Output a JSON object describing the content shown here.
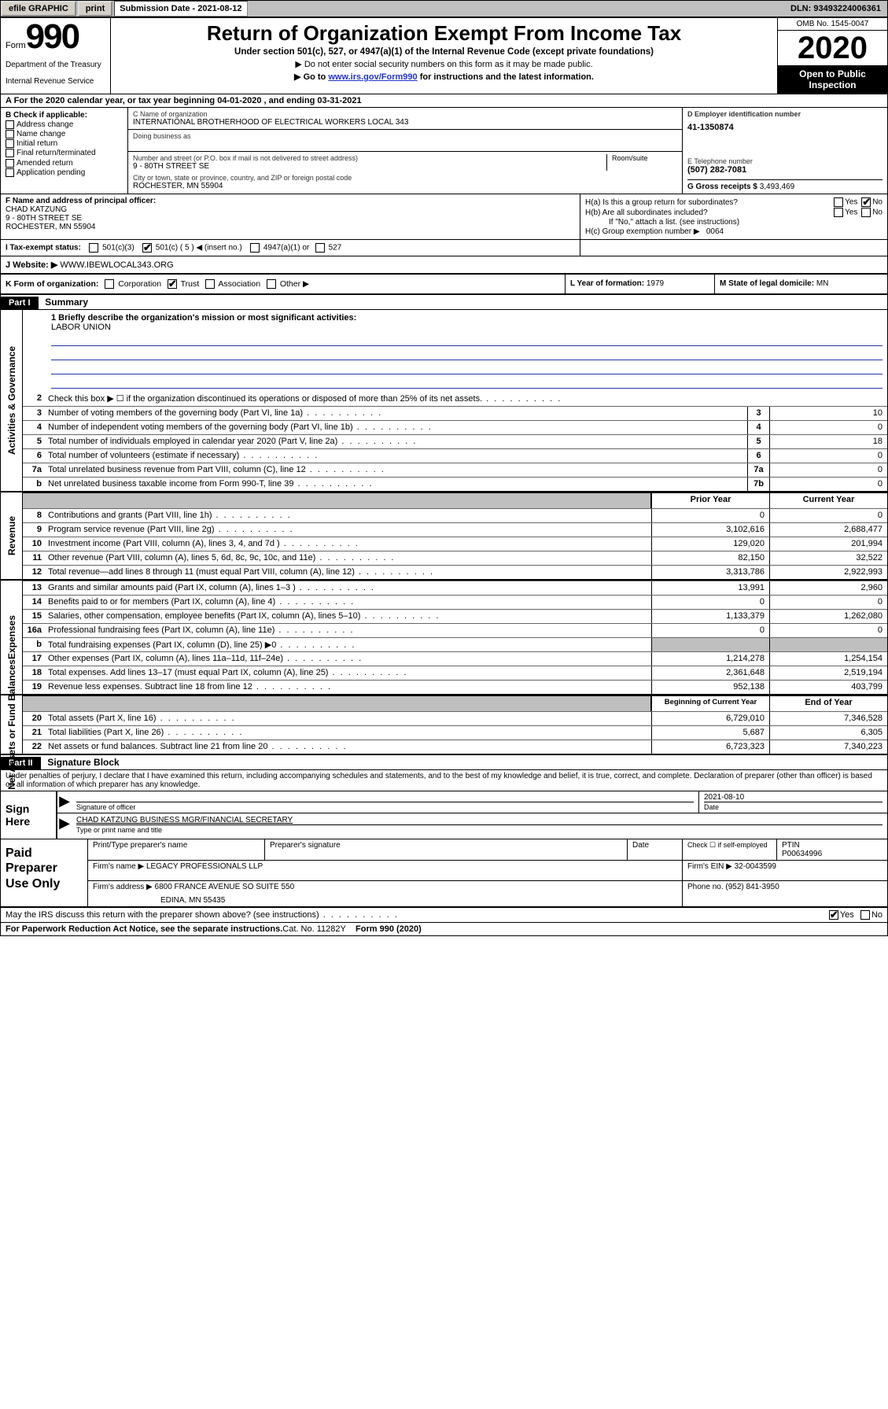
{
  "topbar": {
    "efile": "efile GRAPHIC",
    "print": "print",
    "sub_date_label": "Submission Date - 2021-08-12",
    "dln": "DLN: 93493224006361"
  },
  "form": {
    "form_word": "Form",
    "number": "990",
    "dept1": "Department of the Treasury",
    "dept2": "Internal Revenue Service"
  },
  "title": {
    "main": "Return of Organization Exempt From Income Tax",
    "sub": "Under section 501(c), 527, or 4947(a)(1) of the Internal Revenue Code (except private foundations)",
    "note1": "▶ Do not enter social security numbers on this form as it may be made public.",
    "note2_pre": "▶ Go to ",
    "note2_link": "www.irs.gov/Form990",
    "note2_post": " for instructions and the latest information."
  },
  "yearbox": {
    "omb": "OMB No. 1545-0047",
    "year": "2020",
    "open1": "Open to Public",
    "open2": "Inspection"
  },
  "row_a": "A For the 2020 calendar year, or tax year beginning 04-01-2020    , and ending 03-31-2021",
  "section_b": {
    "header": "B Check if applicable:",
    "items": [
      "Address change",
      "Name change",
      "Initial return",
      "Final return/terminated",
      "Amended return",
      "Application pending"
    ]
  },
  "section_c": {
    "name_label": "C Name of organization",
    "name": "INTERNATIONAL BROTHERHOOD OF ELECTRICAL WORKERS LOCAL 343",
    "dba_label": "Doing business as",
    "addr_label": "Number and street (or P.O. box if mail is not delivered to street address)",
    "addr": "9 - 80TH STREET SE",
    "room_label": "Room/suite",
    "city_label": "City or town, state or province, country, and ZIP or foreign postal code",
    "city": "ROCHESTER, MN  55904"
  },
  "section_d": {
    "ein_label": "D Employer identification number",
    "ein": "41-1350874",
    "tel_label": "E Telephone number",
    "tel": "(507) 282-7081",
    "gross_label": "G Gross receipts $ ",
    "gross": "3,493,469"
  },
  "section_f": {
    "label": "F  Name and address of principal officer:",
    "name": "CHAD KATZUNG",
    "addr1": "9 - 80TH STREET SE",
    "addr2": "ROCHESTER, MN  55904"
  },
  "section_h": {
    "ha": "H(a)  Is this a group return for subordinates?",
    "hb": "H(b)  Are all subordinates included?",
    "hb_note": "If \"No,\" attach a list. (see instructions)",
    "hc": "H(c)  Group exemption number ▶",
    "hc_val": "0064"
  },
  "row_i": {
    "label": "I   Tax-exempt status:",
    "opt1": "501(c)(3)",
    "opt2": "501(c) ( 5 ) ◀ (insert no.)",
    "opt3": "4947(a)(1) or",
    "opt4": "527"
  },
  "row_j_label": "J   Website: ▶ ",
  "row_j_val": "WWW.IBEWLOCAL343.ORG",
  "row_k": {
    "label": "K Form of organization:",
    "opts": [
      "Corporation",
      "Trust",
      "Association",
      "Other ▶"
    ],
    "l_label": "L Year of formation: ",
    "l_val": "1979",
    "m_label": "M State of legal domicile: ",
    "m_val": "MN"
  },
  "part1": {
    "tag": "Part I",
    "title": "Summary",
    "mission_label": "1   Briefly describe the organization's mission or most significant activities:",
    "mission": "LABOR UNION"
  },
  "governance_lines": [
    {
      "n": "2",
      "t": "Check this box ▶ ☐  if the organization discontinued its operations or disposed of more than 25% of its net assets."
    },
    {
      "n": "3",
      "t": "Number of voting members of the governing body (Part VI, line 1a)",
      "box": "3",
      "v": "10"
    },
    {
      "n": "4",
      "t": "Number of independent voting members of the governing body (Part VI, line 1b)",
      "box": "4",
      "v": "0"
    },
    {
      "n": "5",
      "t": "Total number of individuals employed in calendar year 2020 (Part V, line 2a)",
      "box": "5",
      "v": "18"
    },
    {
      "n": "6",
      "t": "Total number of volunteers (estimate if necessary)",
      "box": "6",
      "v": "0"
    },
    {
      "n": "7a",
      "t": "Total unrelated business revenue from Part VIII, column (C), line 12",
      "box": "7a",
      "v": "0"
    },
    {
      "n": "b",
      "t": "Net unrelated business taxable income from Form 990-T, line 39",
      "box": "7b",
      "v": "0"
    }
  ],
  "hdr_prior": "Prior Year",
  "hdr_current": "Current Year",
  "revenue_lines": [
    {
      "n": "8",
      "t": "Contributions and grants (Part VIII, line 1h)",
      "p": "0",
      "c": "0"
    },
    {
      "n": "9",
      "t": "Program service revenue (Part VIII, line 2g)",
      "p": "3,102,616",
      "c": "2,688,477"
    },
    {
      "n": "10",
      "t": "Investment income (Part VIII, column (A), lines 3, 4, and 7d )",
      "p": "129,020",
      "c": "201,994"
    },
    {
      "n": "11",
      "t": "Other revenue (Part VIII, column (A), lines 5, 6d, 8c, 9c, 10c, and 11e)",
      "p": "82,150",
      "c": "32,522"
    },
    {
      "n": "12",
      "t": "Total revenue—add lines 8 through 11 (must equal Part VIII, column (A), line 12)",
      "p": "3,313,786",
      "c": "2,922,993"
    }
  ],
  "expense_lines": [
    {
      "n": "13",
      "t": "Grants and similar amounts paid (Part IX, column (A), lines 1–3 )",
      "p": "13,991",
      "c": "2,960"
    },
    {
      "n": "14",
      "t": "Benefits paid to or for members (Part IX, column (A), line 4)",
      "p": "0",
      "c": "0"
    },
    {
      "n": "15",
      "t": "Salaries, other compensation, employee benefits (Part IX, column (A), lines 5–10)",
      "p": "1,133,379",
      "c": "1,262,080"
    },
    {
      "n": "16a",
      "t": "Professional fundraising fees (Part IX, column (A), line 11e)",
      "p": "0",
      "c": "0"
    },
    {
      "n": "b",
      "t": "Total fundraising expenses (Part IX, column (D), line 25) ▶0",
      "p": "",
      "c": "",
      "shade": true
    },
    {
      "n": "17",
      "t": "Other expenses (Part IX, column (A), lines 11a–11d, 11f–24e)",
      "p": "1,214,278",
      "c": "1,254,154"
    },
    {
      "n": "18",
      "t": "Total expenses. Add lines 13–17 (must equal Part IX, column (A), line 25)",
      "p": "2,361,648",
      "c": "2,519,194"
    },
    {
      "n": "19",
      "t": "Revenue less expenses. Subtract line 18 from line 12",
      "p": "952,138",
      "c": "403,799"
    }
  ],
  "hdr_begin": "Beginning of Current Year",
  "hdr_end": "End of Year",
  "netasset_lines": [
    {
      "n": "20",
      "t": "Total assets (Part X, line 16)",
      "p": "6,729,010",
      "c": "7,346,528"
    },
    {
      "n": "21",
      "t": "Total liabilities (Part X, line 26)",
      "p": "5,687",
      "c": "6,305"
    },
    {
      "n": "22",
      "t": "Net assets or fund balances. Subtract line 21 from line 20",
      "p": "6,723,323",
      "c": "7,340,223"
    }
  ],
  "part2": {
    "tag": "Part II",
    "title": "Signature Block",
    "declaration": "Under penalties of perjury, I declare that I have examined this return, including accompanying schedules and statements, and to the best of my knowledge and belief, it is true, correct, and complete. Declaration of preparer (other than officer) is based on all information of which preparer has any knowledge."
  },
  "sign": {
    "here": "Sign Here",
    "sig_label": "Signature of officer",
    "date": "2021-08-10",
    "date_label": "Date",
    "name": "CHAD KATZUNG  BUSINESS MGR/FINANCIAL SECRETARY",
    "name_label": "Type or print name and title"
  },
  "paid": {
    "header": "Paid Preparer Use Only",
    "h1": "Print/Type preparer's name",
    "h2": "Preparer's signature",
    "h3": "Date",
    "h4a": "Check ☐ if self-employed",
    "h5": "PTIN",
    "ptin": "P00634996",
    "firm_name_label": "Firm's name      ▶",
    "firm_name": "LEGACY PROFESSIONALS LLP",
    "firm_ein_label": "Firm's EIN ▶",
    "firm_ein": "32-0043599",
    "firm_addr_label": "Firm's address ▶",
    "firm_addr1": "6800 FRANCE AVENUE SO SUITE 550",
    "firm_addr2": "EDINA, MN  55435",
    "phone_label": "Phone no.",
    "phone": "(952) 841-3950"
  },
  "footer": {
    "discuss": "May the IRS discuss this return with the preparer shown above? (see instructions)",
    "paperwork": "For Paperwork Reduction Act Notice, see the separate instructions.",
    "cat": "Cat. No. 11282Y",
    "form": "Form 990 (2020)"
  },
  "vtabs": {
    "gov": "Activities & Governance",
    "rev": "Revenue",
    "exp": "Expenses",
    "net": "Net Assets or Fund Balances"
  },
  "yes": "Yes",
  "no": "No"
}
